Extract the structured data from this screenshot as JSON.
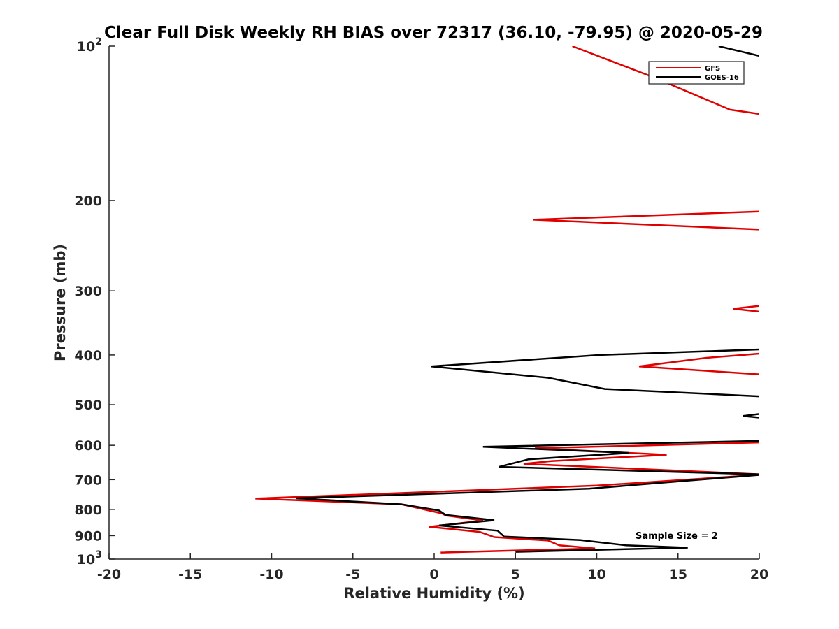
{
  "chart_data": {
    "type": "line",
    "title": "Clear Full Disk Weekly RH BIAS over 72317 (36.10, -79.95) @ 2020-05-29",
    "xlabel": "Relative Humidity (%)",
    "ylabel": "Pressure (mb)",
    "xlim": [
      -20,
      20
    ],
    "ylim": [
      100,
      1000
    ],
    "y_scale": "log",
    "y_reversed": true,
    "x_ticks": [
      -20,
      -15,
      -10,
      -5,
      0,
      5,
      10,
      15,
      20
    ],
    "x_tick_labels": [
      "-20",
      "-15",
      "-10",
      "-5",
      "0",
      "5",
      "10",
      "15",
      "20"
    ],
    "y_ticks": [
      {
        "value": 100,
        "base": "10",
        "exp": "2"
      },
      {
        "value": 200,
        "label": "200"
      },
      {
        "value": 300,
        "label": "300"
      },
      {
        "value": 400,
        "label": "400"
      },
      {
        "value": 500,
        "label": "500"
      },
      {
        "value": 600,
        "label": "600"
      },
      {
        "value": 700,
        "label": "700"
      },
      {
        "value": 800,
        "label": "800"
      },
      {
        "value": 900,
        "label": "900"
      },
      {
        "value": 1000,
        "base": "10",
        "exp": "3"
      }
    ],
    "grid": false,
    "legend_position": "top-right",
    "annotation": "Sample Size = 2",
    "series": [
      {
        "name": "GFS",
        "color": "#e00000",
        "segments": [
          [
            [
              8.5,
              100
            ],
            [
              13.5,
              115
            ],
            [
              18.2,
              133
            ],
            [
              20.3,
              136
            ]
          ],
          [
            [
              20.3,
              210
            ],
            [
              6.1,
              218
            ],
            [
              20.3,
              228
            ]
          ],
          [
            [
              20.3,
              320
            ],
            [
              18.4,
              325
            ],
            [
              20.3,
              330
            ]
          ],
          [
            [
              20.3,
              397
            ],
            [
              16.8,
              405
            ],
            [
              12.6,
              421
            ],
            [
              20.3,
              437
            ]
          ],
          [
            [
              20.3,
              592
            ],
            [
              6.2,
              608
            ],
            [
              14.3,
              626
            ],
            [
              7.2,
              644
            ],
            [
              5.5,
              652
            ],
            [
              20.3,
              684
            ],
            [
              10,
              719
            ],
            [
              -11,
              762
            ],
            [
              -2,
              782
            ],
            [
              0.5,
              815
            ],
            [
              0.7,
              822
            ],
            [
              3,
              841
            ],
            [
              -0.3,
              865
            ],
            [
              2.8,
              885
            ],
            [
              3.7,
              906
            ],
            [
              7,
              920
            ],
            [
              7.7,
              940
            ],
            [
              9.9,
              953
            ],
            [
              0.4,
              971
            ]
          ]
        ]
      },
      {
        "name": "GOES-16",
        "color": "#000000",
        "segments": [
          [
            [
              17.5,
              100
            ],
            [
              20.3,
              105
            ]
          ],
          [
            [
              20.3,
              390
            ],
            [
              10.2,
              400
            ],
            [
              -0.2,
              421
            ],
            [
              7,
              443
            ],
            [
              10.5,
              466
            ],
            [
              20.3,
              482
            ]
          ],
          [
            [
              20.3,
              520
            ],
            [
              19,
              526
            ],
            [
              20.3,
              531
            ]
          ],
          [
            [
              20.3,
              588
            ],
            [
              3,
              604
            ],
            [
              12,
              621
            ],
            [
              5.8,
              639
            ],
            [
              4,
              661
            ],
            [
              20.3,
              684
            ],
            [
              9.5,
              729
            ],
            [
              -8.5,
              761
            ],
            [
              -2,
              782
            ],
            [
              0.3,
              804
            ],
            [
              0.7,
              820
            ],
            [
              3.7,
              840
            ],
            [
              0.3,
              860
            ],
            [
              3.9,
              880
            ],
            [
              4.3,
              904
            ],
            [
              9,
              918
            ],
            [
              11.8,
              940
            ],
            [
              15.6,
              950
            ],
            [
              5,
              968
            ]
          ]
        ]
      }
    ]
  }
}
